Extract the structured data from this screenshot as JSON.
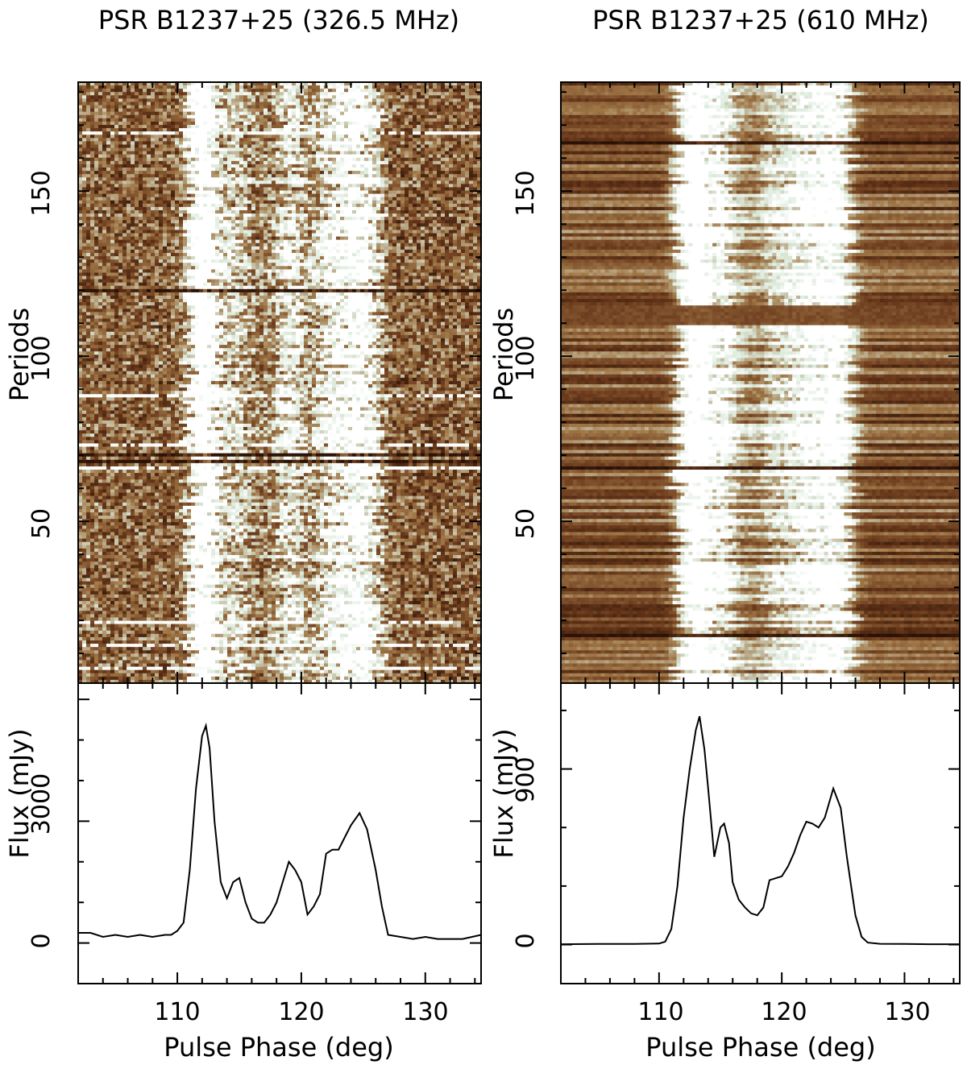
{
  "chart_data": [
    {
      "type": "heatmap",
      "title": "PSR B1237+25 (326.5 MHz)",
      "single_pulse_panel": {
        "ylabel": "Periods",
        "ylim": [
          1,
          183
        ],
        "yticks": [
          "50",
          "100",
          "150"
        ],
        "colormap": [
          "#2a1206",
          "#6b3a1c",
          "#a07848",
          "#dceadc",
          "#ffffff"
        ],
        "components_deg": [
          112.5,
          115.0,
          119.5,
          122.5,
          124.7
        ],
        "bright_rows": [
          5,
          12,
          19,
          66,
          73,
          88,
          168
        ],
        "dark_rows": [
          68,
          70,
          120
        ]
      },
      "profile_panel": {
        "type": "line",
        "ylabel": "Flux (mJy)",
        "ylim": [
          -1000,
          6400
        ],
        "yticks": [
          "0",
          "3000"
        ],
        "x": [
          102,
          103,
          104,
          105,
          106,
          107,
          108,
          109,
          109.5,
          110,
          110.5,
          111,
          111.5,
          112,
          112.3,
          112.6,
          113,
          113.5,
          114,
          114.5,
          115,
          115.5,
          116,
          116.5,
          117,
          117.5,
          118,
          118.5,
          119,
          119.5,
          120,
          120.5,
          121,
          121.5,
          122,
          122.5,
          123,
          123.5,
          124,
          124.7,
          125.3,
          126,
          126.5,
          127,
          128,
          129,
          130,
          131,
          132,
          133,
          134.5
        ],
        "y": [
          250,
          250,
          150,
          200,
          150,
          200,
          150,
          200,
          200,
          300,
          500,
          1800,
          3800,
          5100,
          5350,
          4800,
          3000,
          1500,
          1100,
          1500,
          1600,
          1000,
          600,
          500,
          500,
          700,
          1000,
          1500,
          2000,
          1800,
          1500,
          700,
          900,
          1200,
          2200,
          2300,
          2300,
          2600,
          2900,
          3200,
          2800,
          1800,
          900,
          200,
          150,
          100,
          150,
          100,
          100,
          100,
          200
        ]
      },
      "xaxis": {
        "label": "Pulse Phase (deg)",
        "xlim": [
          102,
          134.5
        ],
        "xticks": [
          "110",
          "120",
          "130"
        ]
      }
    },
    {
      "type": "heatmap",
      "title": "PSR B1237+25 (610 MHz)",
      "single_pulse_panel": {
        "ylabel": "Periods",
        "ylim": [
          1,
          183
        ],
        "yticks": [
          "50",
          "100",
          "150"
        ],
        "colormap": [
          "#2a1206",
          "#6b3a1c",
          "#a07848",
          "#dceadc",
          "#ffffff"
        ],
        "components_deg": [
          113.2,
          115.3,
          119.8,
          122.3,
          124.2
        ],
        "gap_rows": [
          110,
          111,
          112,
          113,
          114,
          115
        ],
        "dark_rows": [
          15,
          66,
          165
        ]
      },
      "profile_panel": {
        "type": "line",
        "ylabel": "Flux (mJy)",
        "ylim": [
          -200,
          1340
        ],
        "yticks": [
          "0",
          "900"
        ],
        "x": [
          102,
          105,
          108,
          110,
          110.5,
          111,
          111.5,
          112,
          112.5,
          113,
          113.3,
          113.7,
          114,
          114.5,
          115,
          115.3,
          115.7,
          116,
          116.5,
          117,
          117.5,
          118,
          118.5,
          119,
          119.5,
          120,
          120.5,
          121,
          121.5,
          122,
          122.5,
          123,
          123.5,
          124.2,
          124.8,
          125.3,
          126,
          126.5,
          127,
          128,
          130,
          132,
          134.5
        ],
        "y": [
          2,
          3,
          3,
          5,
          15,
          80,
          300,
          650,
          900,
          1100,
          1170,
          1000,
          800,
          450,
          600,
          620,
          520,
          320,
          230,
          190,
          160,
          150,
          190,
          330,
          340,
          350,
          400,
          470,
          560,
          630,
          620,
          600,
          650,
          800,
          700,
          450,
          150,
          40,
          10,
          4,
          3,
          2,
          2
        ]
      },
      "xaxis": {
        "label": "Pulse Phase (deg)",
        "xlim": [
          102,
          134.5
        ],
        "xticks": [
          "110",
          "120",
          "130"
        ]
      }
    }
  ]
}
